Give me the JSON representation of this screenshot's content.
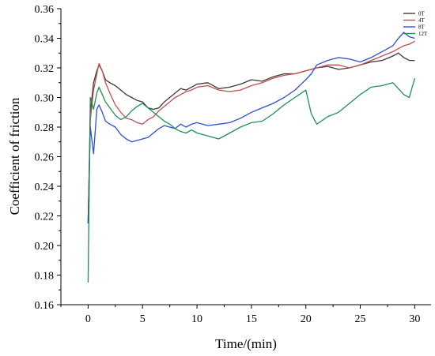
{
  "chart_data": {
    "type": "line",
    "xlabel": "Time/(min)",
    "ylabel": "Coefficient of friction",
    "xlim": [
      -2.5,
      31.5
    ],
    "ylim": [
      0.16,
      0.36
    ],
    "xticks": [
      0,
      5,
      10,
      15,
      20,
      25,
      30
    ],
    "yticks": [
      0.16,
      0.18,
      0.2,
      0.22,
      0.24,
      0.26,
      0.28,
      0.3,
      0.32,
      0.34,
      0.36
    ],
    "ytick_labels": [
      "0.16",
      "0.18",
      "0.20",
      "0.22",
      "0.24",
      "0.26",
      "0.28",
      "0.30",
      "0.32",
      "0.34",
      "0.36"
    ],
    "grid": false,
    "legend_position": "top-right",
    "series": [
      {
        "name": "0T",
        "color": "#3a3a3a",
        "x": [
          0,
          0.2,
          0.5,
          0.8,
          1,
          1.3,
          1.6,
          2,
          2.5,
          3,
          3.5,
          4,
          4.5,
          5,
          5.5,
          6,
          6.5,
          7,
          7.5,
          8,
          8.5,
          9,
          9.5,
          10,
          11,
          12,
          13,
          14,
          15,
          16,
          17,
          18,
          19,
          20,
          21,
          22,
          23,
          24,
          25,
          26,
          27,
          28,
          28.5,
          29,
          29.5,
          30
        ],
        "values": [
          0.215,
          0.29,
          0.31,
          0.318,
          0.322,
          0.318,
          0.312,
          0.31,
          0.308,
          0.305,
          0.302,
          0.3,
          0.298,
          0.297,
          0.293,
          0.292,
          0.293,
          0.297,
          0.3,
          0.303,
          0.306,
          0.305,
          0.307,
          0.309,
          0.31,
          0.306,
          0.307,
          0.309,
          0.312,
          0.311,
          0.314,
          0.316,
          0.316,
          0.318,
          0.32,
          0.321,
          0.319,
          0.32,
          0.322,
          0.324,
          0.325,
          0.328,
          0.33,
          0.327,
          0.325,
          0.325
        ]
      },
      {
        "name": "4T",
        "color": "#c0504d",
        "x": [
          0,
          0.2,
          0.5,
          0.8,
          1,
          1.3,
          1.6,
          2,
          2.5,
          3,
          3.5,
          4,
          4.5,
          5,
          5.5,
          6,
          6.5,
          7,
          7.5,
          8,
          8.5,
          9,
          9.5,
          10,
          11,
          12,
          13,
          14,
          15,
          16,
          17,
          18,
          19,
          20,
          21,
          22,
          23,
          24,
          25,
          26,
          27,
          28,
          28.5,
          29,
          29.5,
          30
        ],
        "values": [
          0.215,
          0.285,
          0.305,
          0.316,
          0.323,
          0.318,
          0.31,
          0.303,
          0.295,
          0.29,
          0.286,
          0.285,
          0.283,
          0.282,
          0.285,
          0.287,
          0.291,
          0.294,
          0.297,
          0.3,
          0.302,
          0.304,
          0.305,
          0.307,
          0.308,
          0.305,
          0.304,
          0.305,
          0.308,
          0.31,
          0.313,
          0.315,
          0.316,
          0.318,
          0.32,
          0.322,
          0.322,
          0.32,
          0.322,
          0.325,
          0.328,
          0.331,
          0.333,
          0.335,
          0.336,
          0.338
        ]
      },
      {
        "name": "8T",
        "color": "#2f4ed6",
        "x": [
          0,
          0.2,
          0.5,
          0.8,
          1,
          1.3,
          1.6,
          2,
          2.5,
          3,
          3.5,
          4,
          4.5,
          5,
          5.5,
          6,
          6.5,
          7,
          7.5,
          8,
          8.5,
          9,
          9.5,
          10,
          11,
          12,
          13,
          14,
          15,
          16,
          17,
          18,
          19,
          20,
          20.5,
          21,
          22,
          23,
          24,
          25,
          26,
          27,
          28,
          28.5,
          29,
          29.5,
          30
        ],
        "values": [
          0.215,
          0.28,
          0.262,
          0.292,
          0.295,
          0.29,
          0.284,
          0.282,
          0.28,
          0.275,
          0.272,
          0.27,
          0.271,
          0.272,
          0.273,
          0.276,
          0.279,
          0.281,
          0.28,
          0.279,
          0.282,
          0.28,
          0.282,
          0.283,
          0.281,
          0.282,
          0.283,
          0.286,
          0.29,
          0.293,
          0.296,
          0.3,
          0.305,
          0.312,
          0.316,
          0.322,
          0.325,
          0.327,
          0.326,
          0.324,
          0.327,
          0.331,
          0.335,
          0.34,
          0.344,
          0.341,
          0.34
        ]
      },
      {
        "name": "12T",
        "color": "#1f8f5a",
        "x": [
          0,
          0.2,
          0.5,
          0.8,
          1,
          1.3,
          1.6,
          2,
          2.5,
          3,
          3.5,
          4,
          4.5,
          5,
          5.5,
          6,
          6.5,
          7,
          7.5,
          8,
          8.5,
          9,
          9.5,
          10,
          11,
          12,
          13,
          14,
          15,
          16,
          17,
          18,
          19,
          20,
          20.5,
          21,
          22,
          23,
          24,
          25,
          26,
          27,
          28,
          28.5,
          29,
          29.5,
          30
        ],
        "values": [
          0.175,
          0.3,
          0.292,
          0.303,
          0.307,
          0.302,
          0.297,
          0.293,
          0.288,
          0.285,
          0.287,
          0.291,
          0.294,
          0.296,
          0.293,
          0.29,
          0.287,
          0.284,
          0.282,
          0.279,
          0.277,
          0.276,
          0.278,
          0.276,
          0.274,
          0.272,
          0.276,
          0.28,
          0.283,
          0.284,
          0.289,
          0.295,
          0.3,
          0.305,
          0.289,
          0.282,
          0.287,
          0.29,
          0.296,
          0.302,
          0.307,
          0.308,
          0.31,
          0.306,
          0.302,
          0.3,
          0.313
        ]
      }
    ]
  }
}
